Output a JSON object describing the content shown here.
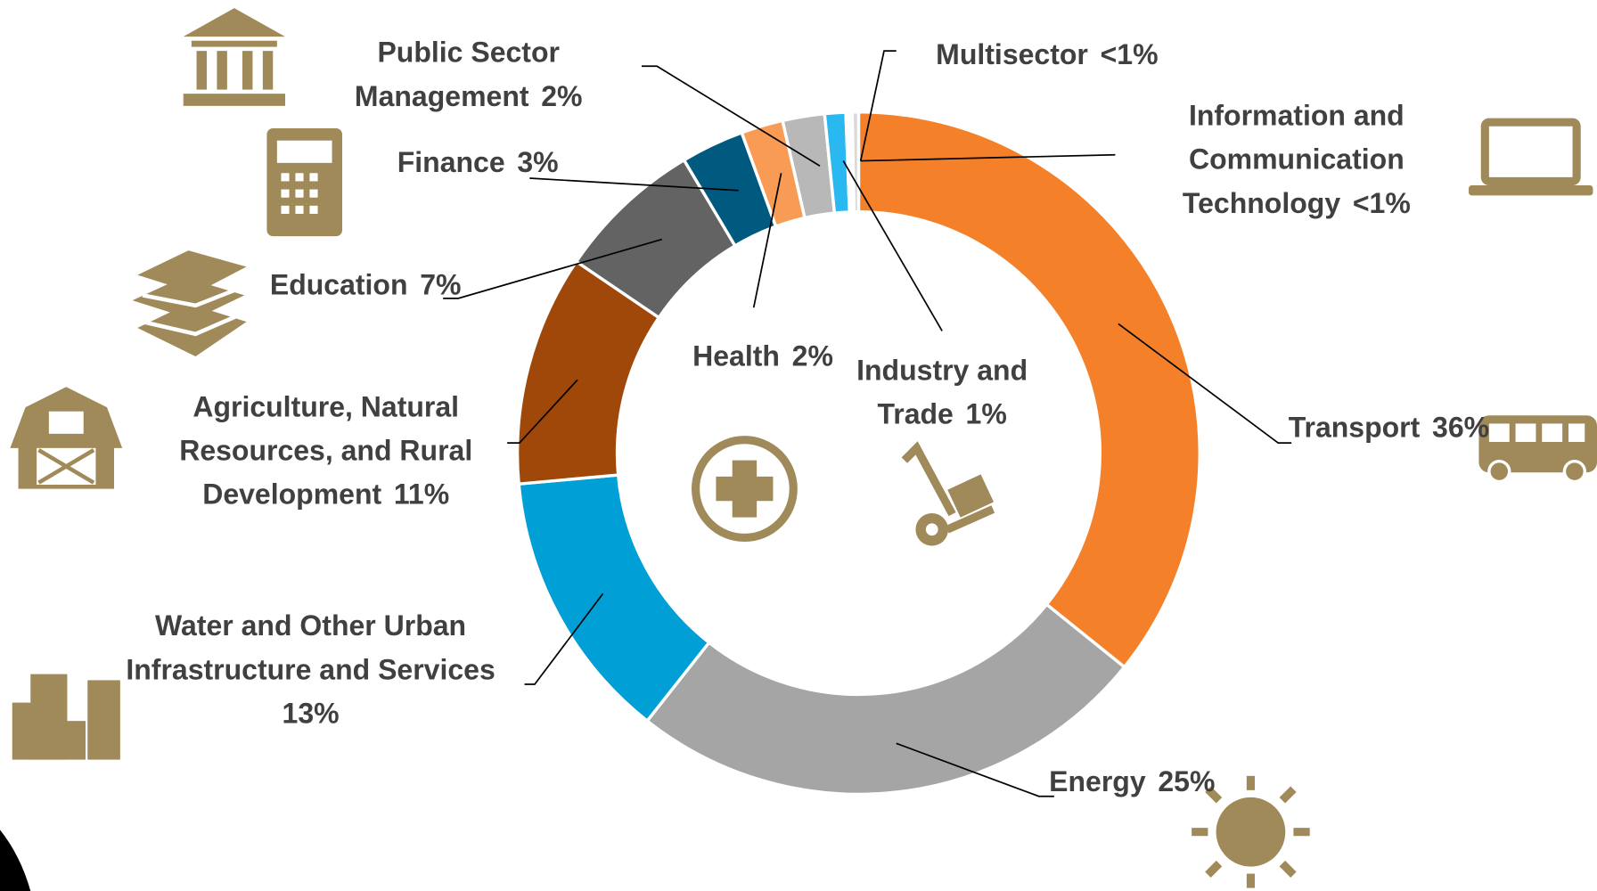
{
  "chart_data": {
    "type": "donut",
    "categories": [
      "Transport",
      "Energy",
      "Water and Other Urban Infrastructure and Services",
      "Agriculture, Natural Resources, and Rural Development",
      "Education",
      "Finance",
      "Health",
      "Public Sector Management",
      "Industry and Trade",
      "Multisector",
      "Information and Communication Technology"
    ],
    "values": [
      36,
      25,
      13,
      11,
      7,
      3,
      2,
      2,
      1,
      0.3,
      0.3
    ],
    "value_labels": [
      "36%",
      "25%",
      "13%",
      "11%",
      "7%",
      "3%",
      "2%",
      "2%",
      "1%",
      "<1%",
      "<1%"
    ],
    "colors": [
      "#f4812a",
      "#a5a5a5",
      "#009fd6",
      "#a0480a",
      "#636363",
      "#005a80",
      "#f79b55",
      "#b8b8b8",
      "#29b8f0",
      "#ffffff",
      "#d9d9d9"
    ]
  }
}
